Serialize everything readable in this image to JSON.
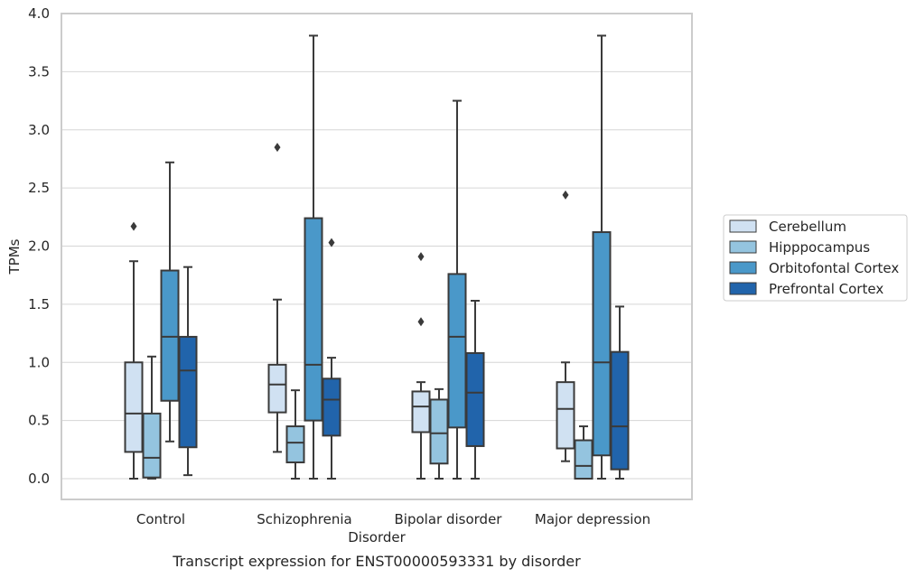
{
  "chart_data": {
    "type": "boxplot",
    "title": "",
    "caption": "Transcript expression for ENST00000593331 by disorder",
    "xlabel": "Disorder",
    "ylabel": "TPMs",
    "ylim": [
      -0.18,
      4.0
    ],
    "yticks": [
      "0.0",
      "0.5",
      "1.0",
      "1.5",
      "2.0",
      "2.5",
      "3.0",
      "3.5",
      "4.0"
    ],
    "grid": "horizontal",
    "legend_position": "right",
    "categories": [
      "Control",
      "Schizophrenia",
      "Bipolar disorder",
      "Major depression"
    ],
    "series": [
      {
        "name": "Cerebellum",
        "color": "#d0e1f2",
        "boxes": [
          {
            "min": 0.0,
            "q1": 0.23,
            "median": 0.56,
            "q3": 1.0,
            "max": 1.87,
            "outliers": [
              2.17
            ]
          },
          {
            "min": 0.23,
            "q1": 0.57,
            "median": 0.81,
            "q3": 0.98,
            "max": 1.54,
            "outliers": [
              2.85
            ]
          },
          {
            "min": 0.0,
            "q1": 0.4,
            "median": 0.62,
            "q3": 0.75,
            "max": 0.83,
            "outliers": [
              1.35,
              1.91
            ]
          },
          {
            "min": 0.15,
            "q1": 0.26,
            "median": 0.6,
            "q3": 0.83,
            "max": 1.0,
            "outliers": [
              2.44
            ]
          }
        ]
      },
      {
        "name": "Hipppocampus",
        "color": "#94c4df",
        "boxes": [
          {
            "min": 0.0,
            "q1": 0.01,
            "median": 0.18,
            "q3": 0.56,
            "max": 1.05,
            "outliers": []
          },
          {
            "min": 0.0,
            "q1": 0.14,
            "median": 0.31,
            "q3": 0.45,
            "max": 0.76,
            "outliers": []
          },
          {
            "min": 0.0,
            "q1": 0.13,
            "median": 0.39,
            "q3": 0.68,
            "max": 0.77,
            "outliers": []
          },
          {
            "min": 0.0,
            "q1": 0.0,
            "median": 0.11,
            "q3": 0.33,
            "max": 0.45,
            "outliers": []
          }
        ]
      },
      {
        "name": "Orbitofontal Cortex",
        "color": "#4a98c9",
        "boxes": [
          {
            "min": 0.32,
            "q1": 0.67,
            "median": 1.22,
            "q3": 1.79,
            "max": 2.72,
            "outliers": []
          },
          {
            "min": 0.0,
            "q1": 0.5,
            "median": 0.98,
            "q3": 2.24,
            "max": 3.81,
            "outliers": []
          },
          {
            "min": 0.0,
            "q1": 0.44,
            "median": 1.22,
            "q3": 1.76,
            "max": 3.25,
            "outliers": []
          },
          {
            "min": 0.0,
            "q1": 0.2,
            "median": 1.0,
            "q3": 2.12,
            "max": 3.81,
            "outliers": []
          }
        ]
      },
      {
        "name": "Prefrontal Cortex",
        "color": "#2164ab",
        "boxes": [
          {
            "min": 0.03,
            "q1": 0.27,
            "median": 0.93,
            "q3": 1.22,
            "max": 1.82,
            "outliers": []
          },
          {
            "min": 0.0,
            "q1": 0.37,
            "median": 0.68,
            "q3": 0.86,
            "max": 1.04,
            "outliers": [
              2.03
            ]
          },
          {
            "min": 0.0,
            "q1": 0.28,
            "median": 0.74,
            "q3": 1.08,
            "max": 1.53,
            "outliers": []
          },
          {
            "min": 0.0,
            "q1": 0.08,
            "median": 0.45,
            "q3": 1.09,
            "max": 1.48,
            "outliers": []
          }
        ]
      }
    ]
  }
}
